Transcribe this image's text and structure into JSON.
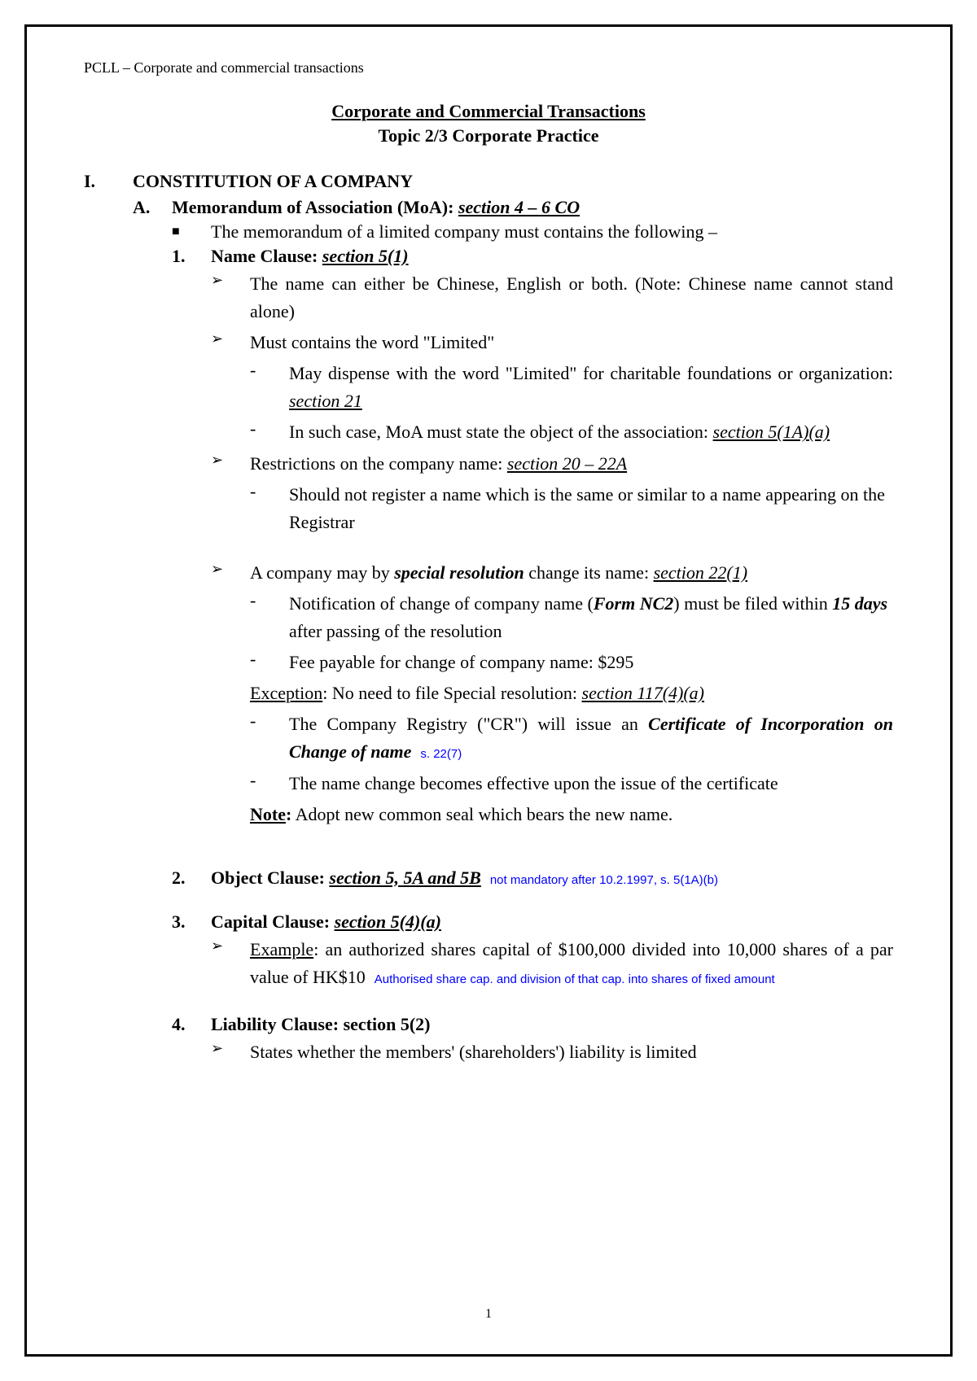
{
  "header": "PCLL – Corporate and commercial transactions",
  "title_main": "Corporate and Commercial Transactions",
  "title_sub": "Topic 2/3 Corporate Practice",
  "sec_I_num": "I.",
  "sec_I_txt": "CONSTITUTION OF A COMPANY",
  "A_num": "A.",
  "A_label": "Memorandum of Association (MoA): ",
  "A_ref": "section 4 – 6 CO",
  "A_bullet": "The memorandum of a limited company must contains the following –",
  "c1_num": "1.",
  "c1_label": "Name Clause: ",
  "c1_ref": "section 5(1)",
  "c1_p1": "The name can either be Chinese, English or both. (Note: Chinese name cannot stand alone)",
  "c1_p2": "Must contains the word \"Limited\"",
  "c1_p2_d1a": "May dispense with the word \"Limited\" for charitable foundations or organization: ",
  "c1_p2_d1b": "section 21",
  "c1_p2_d2a": "In such case, MoA must state the object of the association: ",
  "c1_p2_d2b": "section 5(1A)(a)",
  "c1_p3a": "Restrictions on the company name: ",
  "c1_p3b": "section 20 – 22A",
  "c1_p3_d1": "Should not register a name which is the same or similar to a name appearing on the Registrar",
  "c1_p4a": "A company may by ",
  "c1_p4b": "special resolution",
  "c1_p4c": " change its name: ",
  "c1_p4d": "section 22(1)",
  "c1_p4_d1a": "Notification of change of company name (",
  "c1_p4_d1b": "Form NC2",
  "c1_p4_d1c": ") must be filed within ",
  "c1_p4_d1d": "15 days",
  "c1_p4_d1e": " after passing of the resolution",
  "c1_p4_d2": "Fee payable for change of company name: $295",
  "c1_exc_a": "Exception",
  "c1_exc_b": ": No need to file Special resolution: ",
  "c1_exc_c": "section 117(4)(a)",
  "c1_p4_d3a": "The Company Registry (\"CR\") will issue an ",
  "c1_p4_d3b": "Certificate of Incorporation on Change of name",
  "c1_anno1": "s. 22(7)",
  "c1_p4_d4": "The name change becomes effective upon the issue of the certificate",
  "c1_note_a": "Note",
  "c1_note_b": ": Adopt new common seal which bears the new name.",
  "c2_num": "2.",
  "c2_label": "Object Clause: ",
  "c2_ref": "section 5, 5A and 5B",
  "c2_anno": "not mandatory after 10.2.1997, s. 5(1A)(b)",
  "c3_num": "3.",
  "c3_label": "Capital Clause: ",
  "c3_ref": "section 5(4)(a)",
  "c3_p1a": "Example",
  "c3_p1b": ": an authorized shares capital of $100,000 divided into 10,000 shares of a par value of HK$10",
  "c3_anno": "Authorised share cap. and division of that cap. into shares of fixed amount",
  "c4_num": "4.",
  "c4_label": "Liability Clause: section 5(2)",
  "c4_p1": "States whether the members' (shareholders') liability is limited",
  "page_number": "1"
}
